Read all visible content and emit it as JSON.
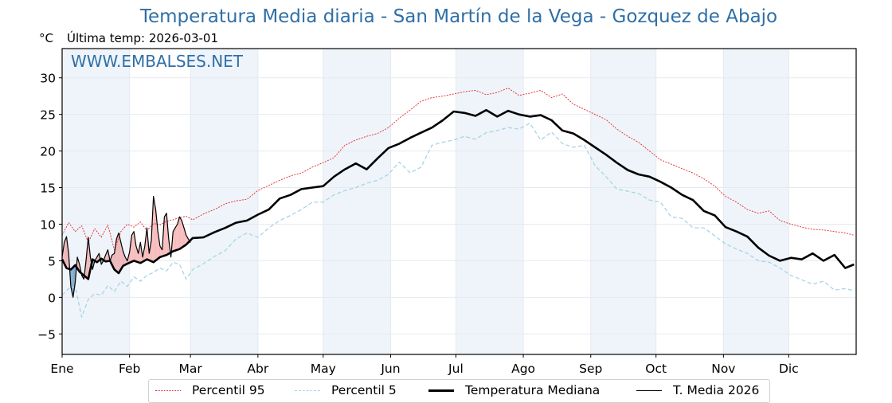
{
  "title": "Temperatura Media diaria - San Martín de la Vega - Gozquez de Abajo",
  "unit_label": "°C",
  "last_temp_label": "Última temp: 2026-03-01",
  "watermark": "WWW.EMBALSES.NET",
  "colors": {
    "title": "#2f6fa6",
    "p95": "#e8262b",
    "p5": "#a8d4e6",
    "median": "#000000",
    "year": "#000000",
    "above_fill": "#f08080",
    "below_fill": "#4682b4",
    "band": "#eef4fa",
    "grid": "#e6e9ee"
  },
  "legend": [
    {
      "key": "p95",
      "label": "Percentil 95"
    },
    {
      "key": "p5",
      "label": "Percentil 5"
    },
    {
      "key": "median",
      "label": "Temperatura Mediana"
    },
    {
      "key": "year",
      "label": "T. Media 2026"
    }
  ],
  "chart_data": {
    "type": "line",
    "title": "Temperatura Media diaria - San Martín de la Vega - Gozquez de Abajo",
    "ylabel": "°C",
    "xlabel": "",
    "ylim": [
      -7.8,
      34
    ],
    "xlim": [
      0,
      365
    ],
    "grid": true,
    "legend_position": "bottom-center",
    "y_ticks": [
      -5,
      0,
      5,
      10,
      15,
      20,
      25,
      30
    ],
    "y_tick_labels": [
      "−5",
      "0",
      "5",
      "10",
      "15",
      "20",
      "25",
      "30"
    ],
    "x_ticks": [
      {
        "day": 0,
        "label": "Ene"
      },
      {
        "day": 31,
        "label": "Feb"
      },
      {
        "day": 59,
        "label": "Mar"
      },
      {
        "day": 90,
        "label": "Abr"
      },
      {
        "day": 120,
        "label": "May"
      },
      {
        "day": 151,
        "label": "Jun"
      },
      {
        "day": 181,
        "label": "Jul"
      },
      {
        "day": 212,
        "label": "Ago"
      },
      {
        "day": 243,
        "label": "Sep"
      },
      {
        "day": 273,
        "label": "Oct"
      },
      {
        "day": 304,
        "label": "Nov"
      },
      {
        "day": 334,
        "label": "Dic"
      }
    ],
    "shaded_months": [
      [
        0,
        31
      ],
      [
        59,
        90
      ],
      [
        120,
        151
      ],
      [
        181,
        212
      ],
      [
        243,
        273
      ],
      [
        304,
        334
      ]
    ],
    "series": [
      {
        "name": "Percentil 95",
        "key": "p95",
        "style": "dotted",
        "x": [
          0,
          3,
          6,
          9,
          12,
          15,
          18,
          21,
          24,
          27,
          30,
          33,
          36,
          39,
          42,
          45,
          48,
          51,
          54,
          57,
          60,
          65,
          70,
          75,
          80,
          85,
          90,
          95,
          100,
          105,
          110,
          115,
          120,
          125,
          130,
          135,
          140,
          145,
          150,
          155,
          160,
          165,
          170,
          175,
          180,
          185,
          190,
          195,
          200,
          205,
          210,
          215,
          220,
          225,
          230,
          235,
          240,
          245,
          250,
          255,
          260,
          265,
          270,
          275,
          280,
          285,
          290,
          295,
          300,
          305,
          310,
          315,
          320,
          325,
          330,
          335,
          340,
          345,
          350,
          355,
          360,
          364
        ],
        "values": [
          8.5,
          10.2,
          9.0,
          9.8,
          7.5,
          9.4,
          8.2,
          9.9,
          6.5,
          9.0,
          10.0,
          9.6,
          10.3,
          9.1,
          10.1,
          9.9,
          10.4,
          10.6,
          10.9,
          11.1,
          10.6,
          11.4,
          12.0,
          12.8,
          13.2,
          13.4,
          14.6,
          15.3,
          16.0,
          16.6,
          17.0,
          17.8,
          18.4,
          19.1,
          20.8,
          21.5,
          22.0,
          22.4,
          23.2,
          24.5,
          25.6,
          26.8,
          27.3,
          27.5,
          27.8,
          28.1,
          28.3,
          27.7,
          28.0,
          28.6,
          27.6,
          27.9,
          28.3,
          27.3,
          27.8,
          26.4,
          25.7,
          25.0,
          24.3,
          23.0,
          22.0,
          21.2,
          20.0,
          18.8,
          18.2,
          17.6,
          17.0,
          16.2,
          15.2,
          13.8,
          13.0,
          12.0,
          11.5,
          11.8,
          10.5,
          10.0,
          9.6,
          9.3,
          9.2,
          9.0,
          8.8,
          8.5
        ]
      },
      {
        "name": "Percentil 5",
        "key": "p5",
        "style": "dashed",
        "x": [
          0,
          3,
          6,
          9,
          12,
          15,
          18,
          21,
          24,
          27,
          30,
          33,
          36,
          39,
          42,
          45,
          48,
          51,
          54,
          57,
          60,
          65,
          70,
          75,
          80,
          85,
          90,
          95,
          100,
          105,
          110,
          115,
          120,
          125,
          130,
          135,
          140,
          145,
          150,
          155,
          160,
          165,
          170,
          175,
          180,
          185,
          190,
          195,
          200,
          205,
          210,
          215,
          220,
          225,
          230,
          235,
          240,
          245,
          250,
          255,
          260,
          265,
          270,
          275,
          280,
          285,
          290,
          295,
          300,
          305,
          310,
          315,
          320,
          325,
          330,
          335,
          340,
          345,
          350,
          355,
          360,
          364
        ],
        "values": [
          0.3,
          1.2,
          1.5,
          -2.7,
          -0.3,
          0.5,
          0.3,
          1.6,
          0.8,
          2.2,
          1.5,
          2.8,
          2.2,
          3.0,
          3.4,
          4.0,
          3.6,
          4.8,
          4.5,
          2.5,
          3.8,
          4.6,
          5.6,
          6.4,
          8.0,
          8.8,
          8.2,
          9.5,
          10.5,
          11.2,
          12.0,
          13.0,
          13.0,
          14.0,
          14.6,
          15.0,
          15.6,
          16.0,
          16.8,
          18.5,
          17.0,
          17.8,
          20.8,
          21.2,
          21.5,
          22.0,
          21.6,
          22.5,
          22.8,
          23.2,
          23.0,
          23.8,
          21.5,
          22.6,
          21.0,
          20.5,
          20.8,
          18.0,
          16.5,
          14.8,
          14.5,
          14.2,
          13.3,
          13.0,
          11.0,
          10.8,
          9.5,
          9.5,
          8.4,
          7.3,
          6.6,
          6.0,
          5.0,
          4.8,
          4.0,
          3.0,
          2.4,
          1.8,
          2.2,
          1.0,
          1.2,
          0.9
        ]
      },
      {
        "name": "Temperatura Mediana",
        "key": "median",
        "style": "thick",
        "x": [
          0,
          2,
          4,
          6,
          8,
          10,
          12,
          14,
          16,
          18,
          20,
          22,
          24,
          26,
          28,
          30,
          33,
          36,
          39,
          42,
          45,
          48,
          51,
          54,
          57,
          60,
          65,
          70,
          75,
          80,
          85,
          90,
          95,
          100,
          105,
          110,
          115,
          120,
          125,
          130,
          135,
          140,
          145,
          150,
          155,
          160,
          165,
          170,
          175,
          180,
          185,
          190,
          195,
          200,
          205,
          210,
          215,
          220,
          225,
          230,
          235,
          240,
          245,
          250,
          255,
          260,
          265,
          270,
          275,
          280,
          285,
          290,
          295,
          300,
          305,
          310,
          315,
          320,
          325,
          330,
          335,
          340,
          345,
          350,
          355,
          360,
          364
        ],
        "values": [
          5.2,
          4.0,
          3.8,
          4.4,
          3.5,
          3.0,
          2.5,
          5.2,
          4.8,
          5.3,
          4.9,
          5.0,
          3.8,
          3.3,
          4.3,
          4.6,
          5.0,
          4.7,
          5.2,
          4.8,
          5.5,
          5.8,
          6.3,
          6.6,
          7.2,
          8.1,
          8.2,
          8.9,
          9.5,
          10.2,
          10.5,
          11.3,
          12.0,
          13.5,
          14.0,
          14.8,
          15.0,
          15.2,
          16.5,
          17.5,
          18.3,
          17.5,
          19.0,
          20.4,
          21.0,
          21.8,
          22.5,
          23.2,
          24.2,
          25.4,
          25.2,
          24.8,
          25.6,
          24.7,
          25.5,
          25.0,
          24.7,
          24.9,
          24.2,
          22.8,
          22.4,
          21.5,
          20.5,
          19.5,
          18.4,
          17.4,
          16.8,
          16.5,
          15.8,
          15.0,
          14.0,
          13.3,
          11.8,
          11.2,
          9.6,
          9.0,
          8.3,
          6.8,
          5.7,
          5.0,
          5.4,
          5.2,
          6.0,
          5.0,
          5.8,
          4.0,
          4.5
        ]
      },
      {
        "name": "T. Media 2026",
        "key": "year",
        "style": "thin",
        "x": [
          0,
          1,
          2,
          3,
          4,
          5,
          6,
          7,
          8,
          9,
          10,
          11,
          12,
          13,
          14,
          15,
          16,
          17,
          18,
          19,
          20,
          21,
          22,
          23,
          24,
          25,
          26,
          27,
          28,
          29,
          30,
          31,
          32,
          33,
          34,
          35,
          36,
          37,
          38,
          39,
          40,
          41,
          42,
          43,
          44,
          45,
          46,
          47,
          48,
          49,
          50,
          51,
          52,
          53,
          54,
          55,
          56,
          57,
          58,
          59
        ],
        "values": [
          5.5,
          7.5,
          8.3,
          6.0,
          1.5,
          0.0,
          2.0,
          5.5,
          4.5,
          3.0,
          2.5,
          5.0,
          8.2,
          5.5,
          3.8,
          5.0,
          5.5,
          6.0,
          4.5,
          5.0,
          5.8,
          6.5,
          5.0,
          5.8,
          6.0,
          8.0,
          8.8,
          7.5,
          6.3,
          5.5,
          5.0,
          6.2,
          8.5,
          9.0,
          7.0,
          6.0,
          7.5,
          5.5,
          7.0,
          9.5,
          6.0,
          7.8,
          13.8,
          12.0,
          9.0,
          7.0,
          6.5,
          11.0,
          11.5,
          8.0,
          5.5,
          9.0,
          9.5,
          10.0,
          11.0,
          10.5,
          9.5,
          8.5,
          8.0,
          7.5
        ]
      }
    ]
  }
}
